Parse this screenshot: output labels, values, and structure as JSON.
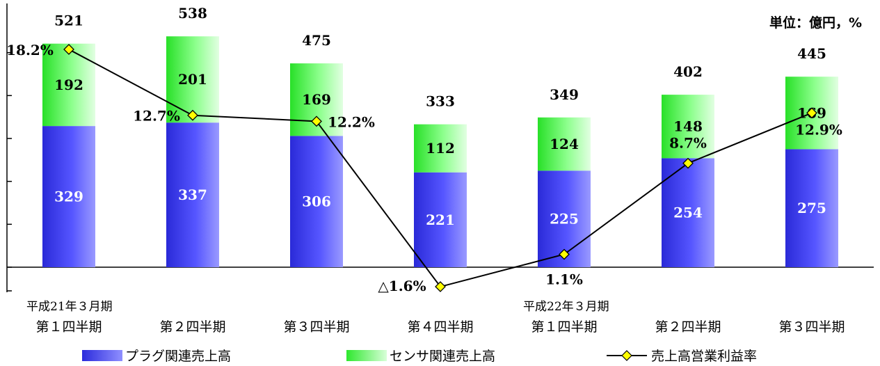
{
  "unit_label": "単位：億円，%",
  "period_labels": [
    "平成21年３月期",
    "平成22年３月期"
  ],
  "legend": {
    "plug": "プラグ関連売上高",
    "sensor": "センサ関連売上高",
    "margin": "売上高営業利益率"
  },
  "colors": {
    "plug": "#3b3bf0",
    "sensor": "#40f040",
    "line": "#000000",
    "marker": "#ffff00"
  },
  "chart_data": {
    "type": "bar",
    "stacked": true,
    "categories": [
      "第１四半期",
      "第２四半期",
      "第３四半期",
      "第４四半期",
      "第１四半期",
      "第２四半期",
      "第３四半期"
    ],
    "series": [
      {
        "name": "プラグ関連売上高",
        "values": [
          329,
          337,
          306,
          221,
          225,
          254,
          275
        ]
      },
      {
        "name": "センサ関連売上高",
        "values": [
          192,
          201,
          169,
          112,
          124,
          148,
          169
        ]
      }
    ],
    "totals": [
      521,
      538,
      475,
      333,
      349,
      402,
      445
    ],
    "line_series": {
      "name": "売上高営業利益率",
      "values": [
        18.2,
        12.7,
        12.2,
        -1.6,
        1.1,
        8.7,
        12.9
      ],
      "labels": [
        "18.2%",
        "12.7%",
        "12.2%",
        "△1.6%",
        "1.1%",
        "8.7%",
        "12.9%"
      ]
    },
    "ylim": [
      0,
      600
    ],
    "ylim_secondary": [
      -2,
      22
    ]
  }
}
